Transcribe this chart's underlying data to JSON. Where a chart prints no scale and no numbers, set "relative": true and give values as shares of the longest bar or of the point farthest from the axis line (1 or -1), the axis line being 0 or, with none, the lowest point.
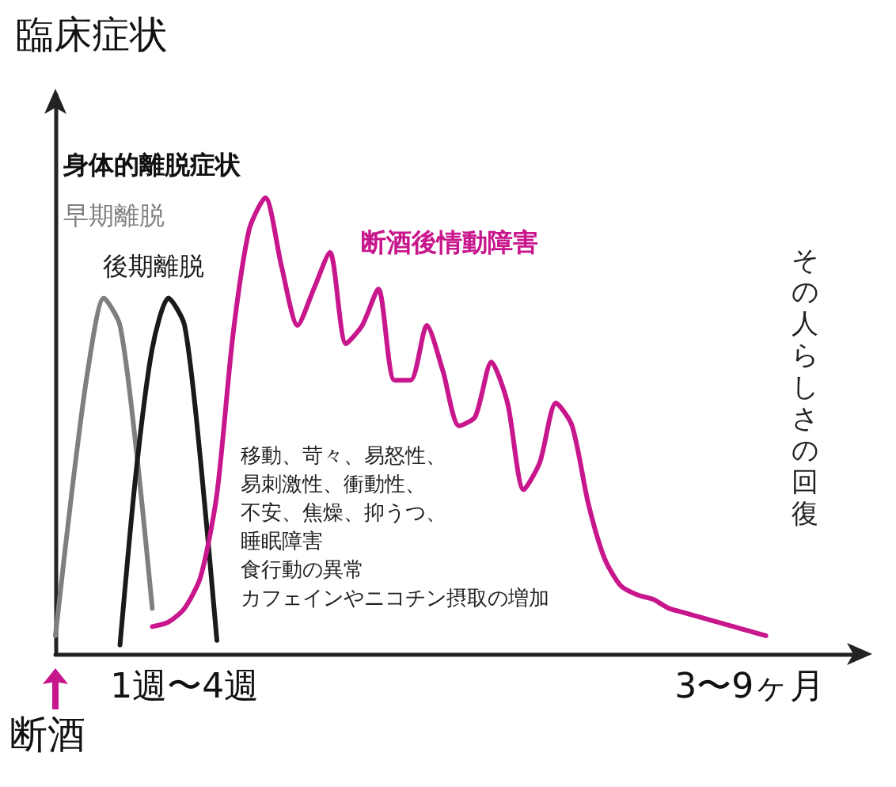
{
  "chart_data": {
    "type": "line",
    "relative": true,
    "ylabel": "臨床症状",
    "legend": false,
    "grid": false,
    "marker": "none",
    "line_style": "solid",
    "categories": [
      null,
      null,
      null,
      null,
      null,
      null,
      null,
      null,
      "1週〜4週",
      null,
      null,
      null,
      null,
      null,
      null,
      null,
      null,
      null,
      null,
      null,
      null,
      null,
      null,
      null,
      null,
      null,
      null,
      null,
      null,
      null,
      null,
      null,
      null,
      null,
      null,
      null,
      null,
      null,
      null,
      null,
      null,
      null,
      null,
      "3〜9ヶ月",
      null,
      null,
      null,
      null,
      null,
      null,
      null
    ],
    "series": [
      {
        "name": "早期離脱",
        "color": "#7f7f7f",
        "values": [
          0.04,
          0.35,
          0.62,
          0.78,
          0.72,
          0.45,
          0.1,
          null,
          null,
          null,
          null,
          null,
          null,
          null,
          null,
          null,
          null,
          null,
          null,
          null,
          null,
          null,
          null,
          null,
          null,
          null,
          null,
          null,
          null,
          null,
          null,
          null,
          null,
          null,
          null,
          null,
          null,
          null,
          null,
          null,
          null,
          null,
          null,
          null,
          null,
          null,
          null,
          null,
          null,
          null,
          null
        ]
      },
      {
        "name": "後期離脱",
        "color": "#1a1a1a",
        "values": [
          null,
          null,
          null,
          null,
          0.02,
          0.4,
          0.67,
          0.78,
          0.72,
          0.42,
          0.03,
          null,
          null,
          null,
          null,
          null,
          null,
          null,
          null,
          null,
          null,
          null,
          null,
          null,
          null,
          null,
          null,
          null,
          null,
          null,
          null,
          null,
          null,
          null,
          null,
          null,
          null,
          null,
          null,
          null,
          null,
          null,
          null,
          null,
          null,
          null,
          null,
          null,
          null,
          null,
          null
        ]
      },
      {
        "name": "断酒後情動障害",
        "color": "#c8178c",
        "values": [
          null,
          null,
          null,
          null,
          null,
          null,
          0.06,
          0.07,
          0.1,
          0.17,
          0.35,
          0.7,
          0.93,
          1,
          0.85,
          0.72,
          0.8,
          0.88,
          0.68,
          0.72,
          0.8,
          0.6,
          0.6,
          0.72,
          0.62,
          0.5,
          0.52,
          0.64,
          0.55,
          0.36,
          0.42,
          0.55,
          0.5,
          0.33,
          0.21,
          0.15,
          0.13,
          0.12,
          0.1,
          0.09,
          0.08,
          0.07,
          0.06,
          0.05,
          0.04,
          null,
          null,
          null,
          null,
          null,
          null
        ]
      }
    ],
    "annotations": [
      "身体的離脱症状",
      "その人らしさの回復",
      "断酒",
      "移動、苛々、易怒性、",
      "易刺激性、衝動性、",
      "不安、焦燥、抑うつ、",
      "睡眠障害",
      "食行動の異常",
      "カフェインやニコチン摂取の増加"
    ]
  }
}
